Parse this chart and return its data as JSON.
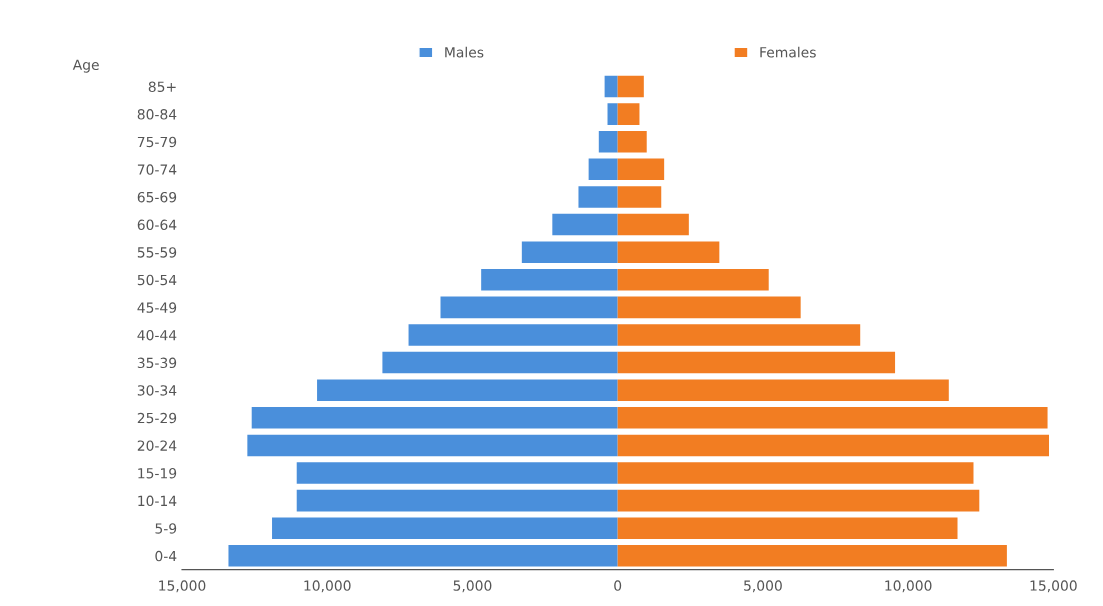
{
  "chart_data": {
    "type": "bar",
    "orientation": "horizontal",
    "ylabel": "Age",
    "categories": [
      "85+",
      "80-84",
      "75-79",
      "70-74",
      "65-69",
      "60-64",
      "55-59",
      "50-54",
      "45-49",
      "40-44",
      "35-39",
      "30-34",
      "25-29",
      "20-24",
      "15-19",
      "10-14",
      "5-9",
      "0-4"
    ],
    "series": [
      {
        "name": "Males",
        "color": "#4a8fdb",
        "values": [
          -450,
          -350,
          -650,
          -1000,
          -1350,
          -2250,
          -3300,
          -4700,
          -6100,
          -7200,
          -8100,
          -10350,
          -12600,
          -12750,
          -11050,
          -11050,
          -11900,
          -13400
        ]
      },
      {
        "name": "Females",
        "color": "#f27d22",
        "values": [
          900,
          750,
          1000,
          1600,
          1500,
          2450,
          3500,
          5200,
          6300,
          8350,
          9550,
          11400,
          14800,
          14850,
          12250,
          12450,
          11700,
          13400
        ]
      }
    ],
    "xlim": [
      -15000,
      15000
    ],
    "xticks": [
      {
        "value": -15000,
        "label": "15,000"
      },
      {
        "value": -10000,
        "label": "10,000"
      },
      {
        "value": -5000,
        "label": "5,000"
      },
      0,
      {
        "value": 5000,
        "label": "5,000"
      },
      {
        "value": 10000,
        "label": "10,000"
      },
      {
        "value": 15000,
        "label": "15,000"
      }
    ],
    "stacked": true,
    "legend": "top"
  }
}
